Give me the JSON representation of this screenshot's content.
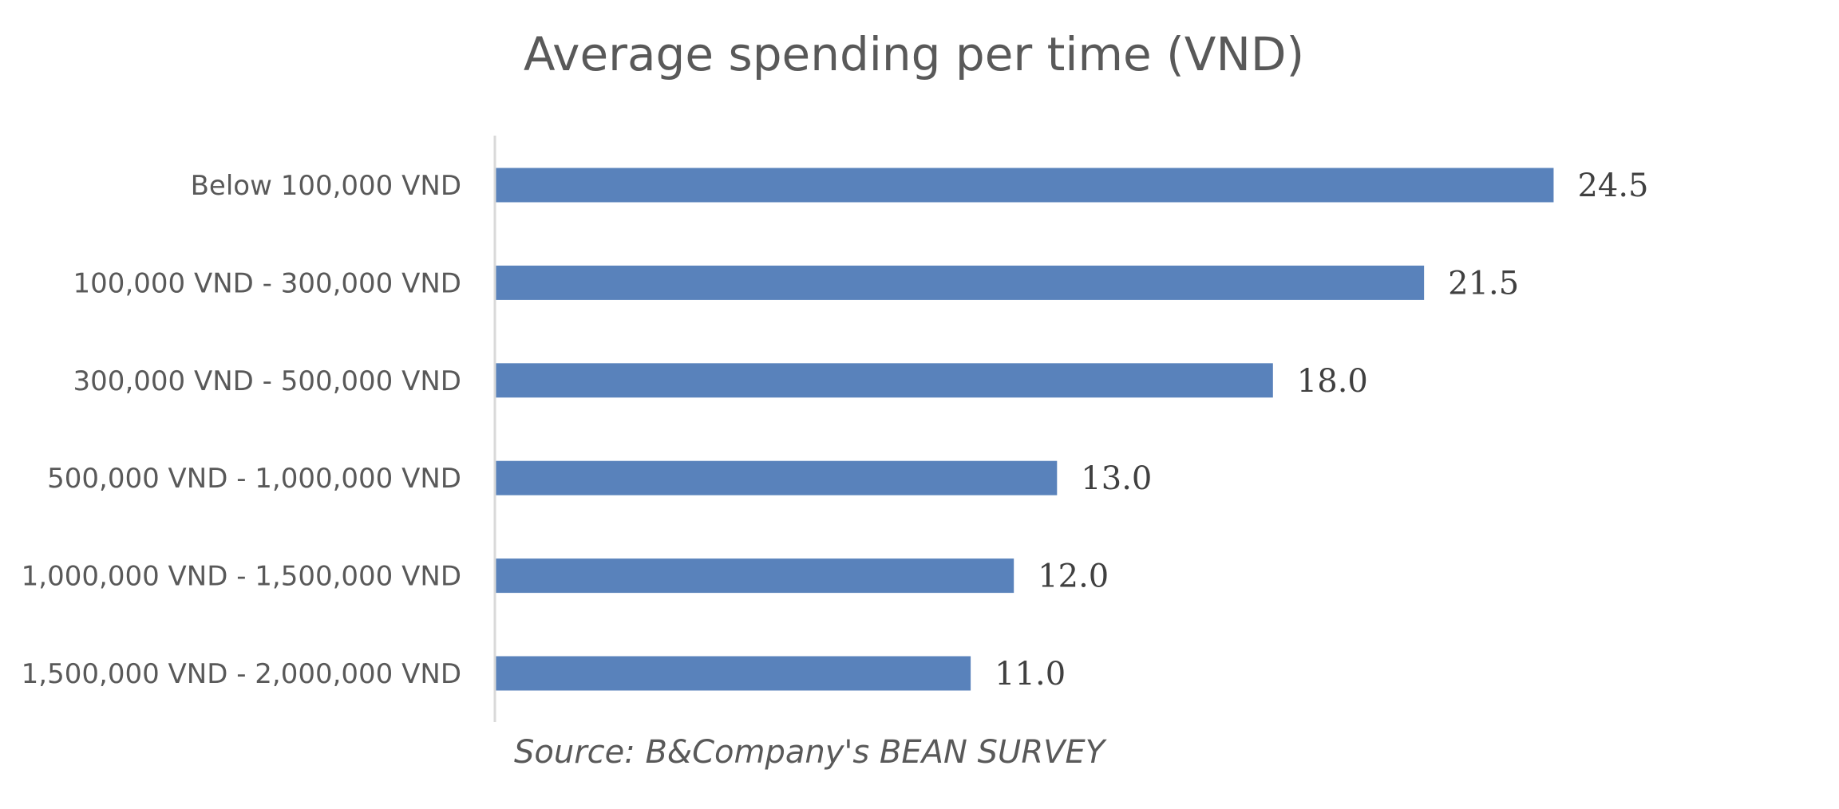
{
  "chart_data": {
    "type": "bar",
    "orientation": "horizontal",
    "title": "Average spending per time (VND)",
    "categories": [
      "Below 100,000 VND",
      "100,000 VND - 300,000 VND",
      "300,000 VND - 500,000 VND",
      "500,000 VND - 1,000,000 VND",
      "1,000,000 VND - 1,500,000 VND",
      "1,500,000 VND - 2,000,000 VND"
    ],
    "values": [
      24.5,
      21.5,
      18.0,
      13.0,
      12.0,
      11.0
    ],
    "value_labels": [
      "24.5",
      "21.5",
      "18.0",
      "13.0",
      "12.0",
      "11.0"
    ],
    "xlabel": "",
    "ylabel": "",
    "xlim": [
      0,
      30
    ],
    "grid": false,
    "legend": "none",
    "bar_color": "#5982bb",
    "axis_color": "#d9d9d9",
    "source": "Source: B&Company's BEAN SURVEY"
  }
}
